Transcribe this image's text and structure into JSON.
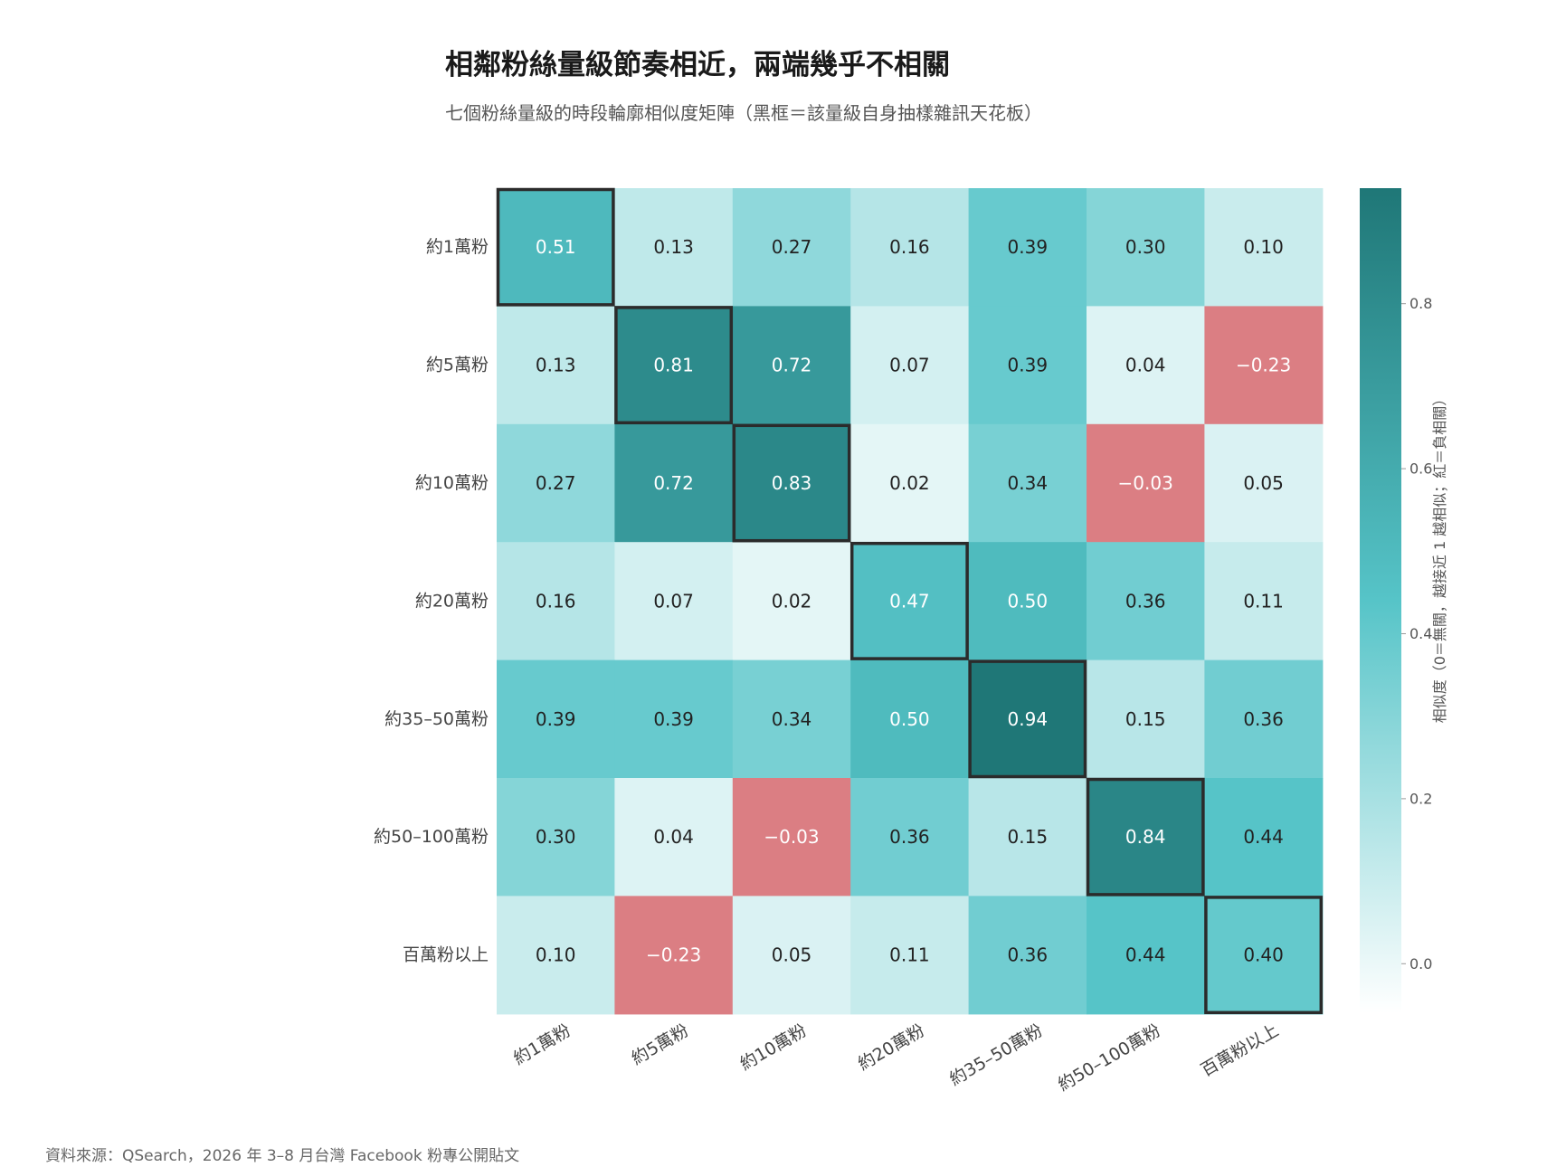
{
  "chart_data": {
    "type": "heatmap",
    "title": "相鄰粉絲量級節奏相近，兩端幾乎不相關",
    "subtitle": "七個粉絲量級的時段輪廓相似度矩陣（黑框＝該量級自身抽樣雜訊天花板）",
    "rows": [
      "約1萬粉",
      "約5萬粉",
      "約10萬粉",
      "約20萬粉",
      "約35–50萬粉",
      "約50–100萬粉",
      "百萬粉以上"
    ],
    "columns": [
      "約1萬粉",
      "約5萬粉",
      "約10萬粉",
      "約20萬粉",
      "約35–50萬粉",
      "約50–100萬粉",
      "百萬粉以上"
    ],
    "values": [
      [
        0.51,
        0.13,
        0.27,
        0.16,
        0.39,
        0.3,
        0.1
      ],
      [
        0.13,
        0.81,
        0.72,
        0.07,
        0.39,
        0.04,
        -0.23
      ],
      [
        0.27,
        0.72,
        0.83,
        0.02,
        0.34,
        -0.03,
        0.05
      ],
      [
        0.16,
        0.07,
        0.02,
        0.47,
        0.5,
        0.36,
        0.11
      ],
      [
        0.39,
        0.39,
        0.34,
        0.5,
        0.94,
        0.15,
        0.36
      ],
      [
        0.3,
        0.04,
        -0.03,
        0.36,
        0.15,
        0.84,
        0.44
      ],
      [
        0.1,
        -0.23,
        0.05,
        0.11,
        0.36,
        0.44,
        0.4
      ]
    ],
    "cell_labels": [
      [
        "0.51",
        "0.13",
        "0.27",
        "0.16",
        "0.39",
        "0.30",
        "0.10"
      ],
      [
        "0.13",
        "0.81",
        "0.72",
        "0.07",
        "0.39",
        "0.04",
        "−0.23"
      ],
      [
        "0.27",
        "0.72",
        "0.83",
        "0.02",
        "0.34",
        "−0.03",
        "0.05"
      ],
      [
        "0.16",
        "0.07",
        "0.02",
        "0.47",
        "0.50",
        "0.36",
        "0.11"
      ],
      [
        "0.39",
        "0.39",
        "0.34",
        "0.50",
        "0.94",
        "0.15",
        "0.36"
      ],
      [
        "0.30",
        "0.04",
        "−0.03",
        "0.36",
        "0.15",
        "0.84",
        "0.44"
      ],
      [
        "0.10",
        "−0.23",
        "0.05",
        "0.11",
        "0.36",
        "0.44",
        "0.40"
      ]
    ],
    "highlighted": "diagonal",
    "colorbar": {
      "label": "相似度（0＝無關，越接近 1 越相似；紅＝負相關）",
      "range": [
        -0.06,
        0.94
      ],
      "ticks": [
        0.0,
        0.2,
        0.4,
        0.6,
        0.8
      ],
      "tick_labels": [
        "0.0",
        "0.2",
        "0.4",
        "0.6",
        "0.8"
      ]
    },
    "colors": {
      "low": "#ffffff",
      "mid": "#56c4c8",
      "high": "#1f7777",
      "negative": "#db7e83",
      "outline": "#2b2b2b"
    },
    "source": "資料來源：QSearch，2026 年 3–8 月台灣 Facebook 粉專公開貼文"
  }
}
